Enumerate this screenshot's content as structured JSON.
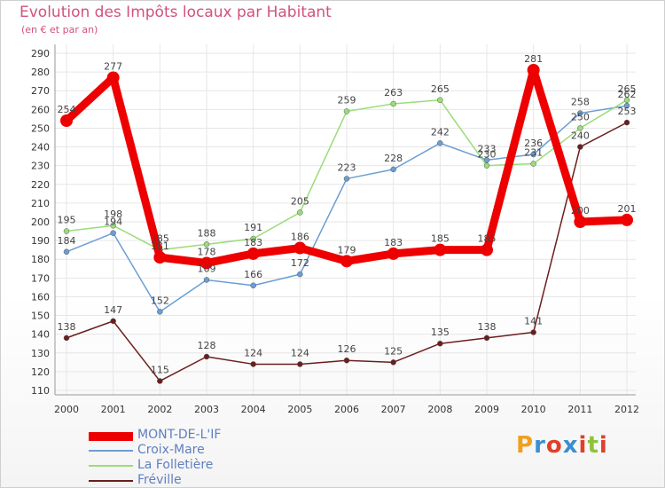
{
  "header": {
    "title": "Evolution des Impôts locaux par Habitant",
    "subtitle": "(en € et par an)"
  },
  "brand": {
    "text": "Proxiti",
    "colors": [
      "#f0a020",
      "#3a8fd0",
      "#e0402a",
      "#3a8fd0",
      "#e0402a",
      "#8fc23a",
      "#e0402a"
    ]
  },
  "chart_data": {
    "type": "line",
    "title": "Evolution des Impôts locaux par Habitant",
    "subtitle": "(en € et par an)",
    "xlabel": "",
    "ylabel": "",
    "categories": [
      "2000",
      "2001",
      "2002",
      "2003",
      "2004",
      "2005",
      "2006",
      "2007",
      "2008",
      "2009",
      "2010",
      "2011",
      "2012"
    ],
    "ylim": [
      110,
      290
    ],
    "yticks": [
      110,
      120,
      130,
      140,
      150,
      160,
      170,
      180,
      190,
      200,
      210,
      220,
      230,
      240,
      250,
      260,
      270,
      280,
      290
    ],
    "grid": true,
    "legend_position": "bottom-left",
    "series": [
      {
        "name": "MONT-DE-L'IF",
        "color": "#ee0000",
        "values": [
          254,
          277,
          181,
          178,
          183,
          186,
          179,
          183,
          185,
          185,
          281,
          200,
          201
        ]
      },
      {
        "name": "Croix-Mare",
        "color": "#6b9ed4",
        "values": [
          184,
          194,
          152,
          169,
          166,
          172,
          223,
          228,
          242,
          233,
          236,
          258,
          262
        ]
      },
      {
        "name": "La Folletière",
        "color": "#99dd77",
        "values": [
          195,
          198,
          185,
          188,
          191,
          205,
          259,
          263,
          265,
          230,
          231,
          250,
          265
        ]
      },
      {
        "name": "Fréville",
        "color": "#6b1e1e",
        "values": [
          138,
          147,
          115,
          128,
          124,
          124,
          126,
          125,
          135,
          138,
          141,
          240,
          253
        ]
      }
    ]
  }
}
